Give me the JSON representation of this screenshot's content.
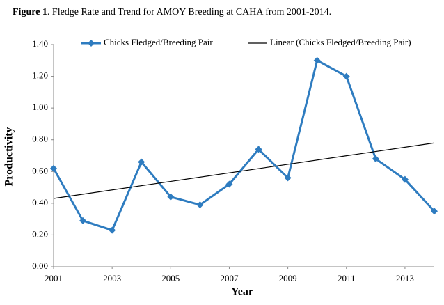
{
  "chart_data": {
    "type": "line",
    "title": {
      "label": "Figure 1",
      "text": ".  Fledge Rate and Trend for AMOY Breeding at CAHA from 2001-2014."
    },
    "x_label": "Year",
    "y_label": "Productivity",
    "series": [
      {
        "name": "Chicks Fledged/Breeding Pair",
        "color": "#2e7cc0",
        "marker": "diamond",
        "x": [
          2001,
          2002,
          2003,
          2004,
          2005,
          2006,
          2007,
          2008,
          2009,
          2010,
          2011,
          2012,
          2013,
          2014
        ],
        "values": [
          0.62,
          0.29,
          0.23,
          0.66,
          0.44,
          0.39,
          0.52,
          0.74,
          0.56,
          1.3,
          1.2,
          0.68,
          0.55,
          0.35
        ]
      },
      {
        "name": "Linear (Chicks Fledged/Breeding Pair)",
        "color": "#000000",
        "marker": "none",
        "x": [
          2001,
          2014
        ],
        "values": [
          0.43,
          0.78
        ]
      }
    ],
    "xlim": [
      2001,
      2014
    ],
    "xticks": [
      2001,
      2003,
      2005,
      2007,
      2009,
      2011,
      2013
    ],
    "ylim": [
      0,
      1.4
    ],
    "yticks": [
      {
        "value": 0,
        "label": "0.00"
      },
      {
        "value": 0.2,
        "label": "0.20"
      },
      {
        "value": 0.4,
        "label": "0.40"
      },
      {
        "value": 0.6,
        "label": "0.60"
      },
      {
        "value": 0.8,
        "label": "0.80"
      },
      {
        "value": 1.0,
        "label": "1.00"
      },
      {
        "value": 1.2,
        "label": "1.20"
      },
      {
        "value": 1.4,
        "label": "1.40"
      }
    ],
    "legend": "top"
  }
}
